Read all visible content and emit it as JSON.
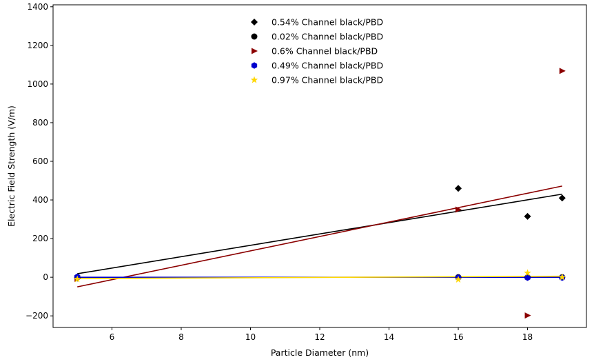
{
  "chart_data": {
    "type": "scatter",
    "title": "",
    "xlabel": "Particle Diameter (nm)",
    "ylabel": "Electric Field Strength (V/m)",
    "xlim": [
      4.3,
      19.7
    ],
    "ylim": [
      -260,
      1410
    ],
    "xticks": [
      6,
      8,
      10,
      12,
      14,
      16,
      18
    ],
    "yticks": [
      -200,
      0,
      200,
      400,
      600,
      800,
      1000,
      1200,
      1400
    ],
    "grid": false,
    "legend_position": "top-center",
    "series": [
      {
        "name": "0.54% Channel black/PBD",
        "marker": "diamond",
        "color": "#000000",
        "x": [
          5,
          16,
          18,
          19
        ],
        "y": [
          -5,
          460,
          315,
          410
        ],
        "fit": {
          "x": [
            5,
            19
          ],
          "y": [
            18,
            430
          ],
          "color": "#000000"
        }
      },
      {
        "name": "0.02% Channel black/PBD",
        "marker": "circle",
        "color": "#000000",
        "x": [
          5,
          16,
          18,
          19
        ],
        "y": [
          0,
          0,
          0,
          0
        ],
        "fit": null
      },
      {
        "name": "0.6% Channel black/PBD",
        "marker": "triangle-right",
        "color": "#8b0000",
        "x": [
          5,
          16,
          18,
          19
        ],
        "y": [
          -8,
          350,
          -198,
          1068
        ],
        "fit": {
          "x": [
            5,
            19
          ],
          "y": [
            -50,
            472
          ],
          "color": "#8b0000"
        }
      },
      {
        "name": "0.49% Channel black/PBD",
        "marker": "hexagon",
        "color": "#0000cd",
        "x": [
          5,
          16,
          18,
          19
        ],
        "y": [
          2,
          -2,
          -2,
          -2
        ],
        "fit": {
          "x": [
            5,
            19
          ],
          "y": [
            0,
            0
          ],
          "color": "#0000cd"
        }
      },
      {
        "name": "0.97% Channel black/PBD",
        "marker": "star",
        "color": "#ffd700",
        "x": [
          5,
          16,
          18,
          19
        ],
        "y": [
          -10,
          -12,
          22,
          0
        ],
        "fit": {
          "x": [
            5,
            19
          ],
          "y": [
            -7,
            5
          ],
          "color": "#ffd700"
        }
      }
    ]
  }
}
